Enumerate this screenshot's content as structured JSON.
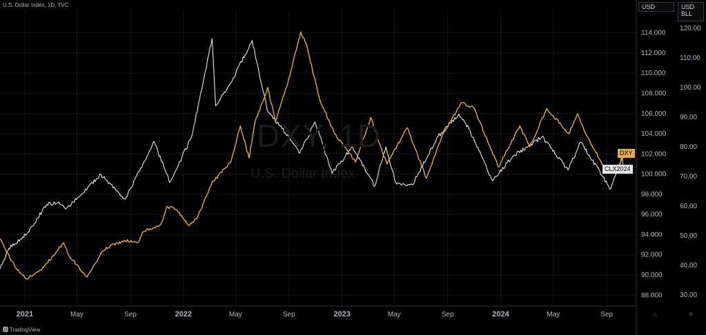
{
  "header": {
    "title": "U.S. Dollar Index, 1D, TVC"
  },
  "scale_buttons": {
    "left": "USD",
    "right_line1": "USD",
    "right_line2": "BLL"
  },
  "watermark": {
    "symbol": "DXY, 1D",
    "name": "U.S. Dollar Index"
  },
  "branding": {
    "logo_text": "TradingView"
  },
  "colors": {
    "background": "#000000",
    "dxy": "#e3ad3f",
    "clx": "#e8e8e8",
    "grid": "#161616",
    "axis_text": "#b2b5be"
  },
  "chart_data": {
    "type": "line",
    "title": "U.S. Dollar Index, 1D, TVC",
    "x_tick_labels": [
      "2021",
      "May",
      "Sep",
      "2022",
      "May",
      "Sep",
      "2023",
      "May",
      "Sep",
      "2024",
      "May",
      "Sep"
    ],
    "x_tick_dates": [
      "2021-01-01",
      "2021-05-01",
      "2021-09-01",
      "2022-01-01",
      "2022-05-01",
      "2022-09-01",
      "2023-01-01",
      "2023-05-01",
      "2023-09-01",
      "2024-01-01",
      "2024-05-01",
      "2024-09-01"
    ],
    "x_range": [
      "2020-11-05",
      "2024-11-08"
    ],
    "y_left": {
      "unit": "USD",
      "ticks": [
        88,
        90,
        92,
        94,
        96,
        98,
        100,
        102,
        104,
        106,
        108,
        110,
        112,
        114
      ],
      "tick_labels": [
        "88.000",
        "90.000",
        "92.000",
        "94.000",
        "96.000",
        "98.000",
        "100.000",
        "102.000",
        "104.000",
        "106.000",
        "108.000",
        "110.000",
        "112.000",
        "114.000"
      ],
      "range": [
        87.2,
        116.3
      ]
    },
    "y_right": {
      "unit": "USD/BLL",
      "ticks": [
        30,
        40,
        50,
        60,
        70,
        80,
        90,
        100,
        110,
        120
      ],
      "tick_labels": [
        "30.00",
        "40.00",
        "50.00",
        "60.00",
        "70.00",
        "80.00",
        "90.00",
        "100.00",
        "110.00",
        "120.00"
      ],
      "range": [
        27.2,
        126.3
      ]
    },
    "grid": true,
    "series": [
      {
        "name": "DXY",
        "axis": "left",
        "last_label": "DXY",
        "points": [
          [
            "2020-11-05",
            93.6
          ],
          [
            "2020-11-20",
            92.3
          ],
          [
            "2020-12-10",
            90.8
          ],
          [
            "2021-01-06",
            89.6
          ],
          [
            "2021-02-10",
            90.6
          ],
          [
            "2021-03-31",
            93.2
          ],
          [
            "2021-04-15",
            91.8
          ],
          [
            "2021-05-25",
            89.8
          ],
          [
            "2021-06-30",
            92.4
          ],
          [
            "2021-07-20",
            93.0
          ],
          [
            "2021-08-20",
            93.4
          ],
          [
            "2021-09-20",
            93.3
          ],
          [
            "2021-10-01",
            94.3
          ],
          [
            "2021-11-10",
            95.0
          ],
          [
            "2021-11-24",
            96.8
          ],
          [
            "2021-12-15",
            96.5
          ],
          [
            "2022-01-14",
            94.9
          ],
          [
            "2022-02-03",
            95.8
          ],
          [
            "2022-03-07",
            99.1
          ],
          [
            "2022-04-20",
            101.2
          ],
          [
            "2022-05-12",
            104.8
          ],
          [
            "2022-06-01",
            101.6
          ],
          [
            "2022-06-15",
            105.2
          ],
          [
            "2022-07-14",
            108.6
          ],
          [
            "2022-08-01",
            105.2
          ],
          [
            "2022-08-29",
            109.0
          ],
          [
            "2022-09-28",
            114.1
          ],
          [
            "2022-10-10",
            113.0
          ],
          [
            "2022-11-10",
            107.5
          ],
          [
            "2022-12-15",
            104.0
          ],
          [
            "2023-02-01",
            101.2
          ],
          [
            "2023-03-08",
            105.6
          ],
          [
            "2023-04-14",
            101.0
          ],
          [
            "2023-05-31",
            104.6
          ],
          [
            "2023-07-14",
            99.6
          ],
          [
            "2023-08-20",
            103.9
          ],
          [
            "2023-10-03",
            107.1
          ],
          [
            "2023-11-01",
            106.5
          ],
          [
            "2023-12-27",
            100.7
          ],
          [
            "2024-02-14",
            104.8
          ],
          [
            "2024-03-08",
            102.7
          ],
          [
            "2024-04-16",
            106.5
          ],
          [
            "2024-06-06",
            104.0
          ],
          [
            "2024-06-26",
            106.0
          ],
          [
            "2024-07-17",
            103.8
          ],
          [
            "2024-08-27",
            100.6
          ],
          [
            "2024-09-27",
            100.4
          ],
          [
            "2024-10-08",
            102.0
          ]
        ]
      },
      {
        "name": "CLX2024",
        "axis": "right",
        "last_label": "CLX2024",
        "points": [
          [
            "2020-11-05",
            38.8
          ],
          [
            "2020-11-25",
            45.7
          ],
          [
            "2021-01-06",
            50.6
          ],
          [
            "2021-02-20",
            60.5
          ],
          [
            "2021-03-20",
            61.4
          ],
          [
            "2021-04-05",
            59.0
          ],
          [
            "2021-05-05",
            63.1
          ],
          [
            "2021-06-25",
            70.8
          ],
          [
            "2021-08-20",
            62.3
          ],
          [
            "2021-10-25",
            81.8
          ],
          [
            "2021-12-01",
            68.0
          ],
          [
            "2022-01-20",
            83.4
          ],
          [
            "2022-03-08",
            116.5
          ],
          [
            "2022-03-16",
            93.8
          ],
          [
            "2022-04-20",
            101.5
          ],
          [
            "2022-06-08",
            115.9
          ],
          [
            "2022-07-14",
            91.8
          ],
          [
            "2022-08-16",
            86.2
          ],
          [
            "2022-09-26",
            77.9
          ],
          [
            "2022-10-31",
            88.4
          ],
          [
            "2022-12-09",
            71.0
          ],
          [
            "2023-01-25",
            80.1
          ],
          [
            "2023-03-17",
            66.7
          ],
          [
            "2023-04-12",
            80.0
          ],
          [
            "2023-05-04",
            68.0
          ],
          [
            "2023-06-12",
            67.2
          ],
          [
            "2023-08-10",
            83.5
          ],
          [
            "2023-09-27",
            91.1
          ],
          [
            "2023-10-20",
            86.1
          ],
          [
            "2023-12-13",
            68.6
          ],
          [
            "2024-01-29",
            76.8
          ],
          [
            "2024-04-05",
            83.4
          ],
          [
            "2024-06-04",
            72.2
          ],
          [
            "2024-07-03",
            81.6
          ],
          [
            "2024-09-10",
            65.8
          ],
          [
            "2024-10-07",
            77.1
          ],
          [
            "2024-10-08",
            73.6
          ]
        ]
      }
    ]
  }
}
